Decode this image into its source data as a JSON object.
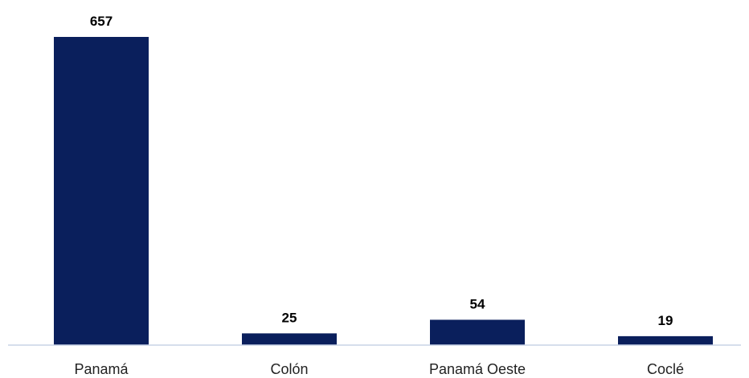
{
  "chart_data": {
    "type": "bar",
    "categories": [
      "Panamá",
      "Colón",
      "Panamá Oeste",
      "Coclé"
    ],
    "values": [
      657,
      25,
      54,
      19
    ],
    "title": "",
    "xlabel": "",
    "ylabel": "",
    "ylim": [
      0,
      657
    ],
    "grid": false,
    "legend": "none",
    "data_labels": true,
    "bar_color": "#0A1F5C",
    "axis_color": "#C9D3E6"
  }
}
